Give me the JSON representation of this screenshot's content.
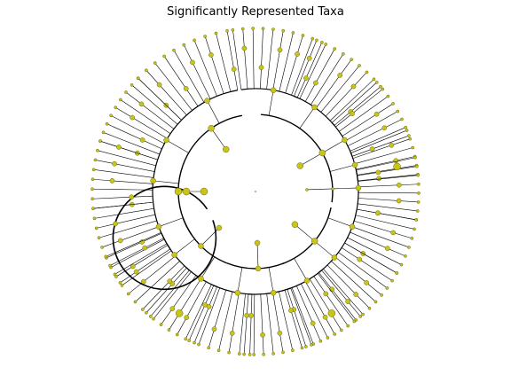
{
  "figure": {
    "title": "Significantly Represented Taxa"
  },
  "colors": {
    "background": "#ffffff",
    "branch": "#000000",
    "node_fill": "#c8c419",
    "node_stroke": "#6b6a10"
  }
}
